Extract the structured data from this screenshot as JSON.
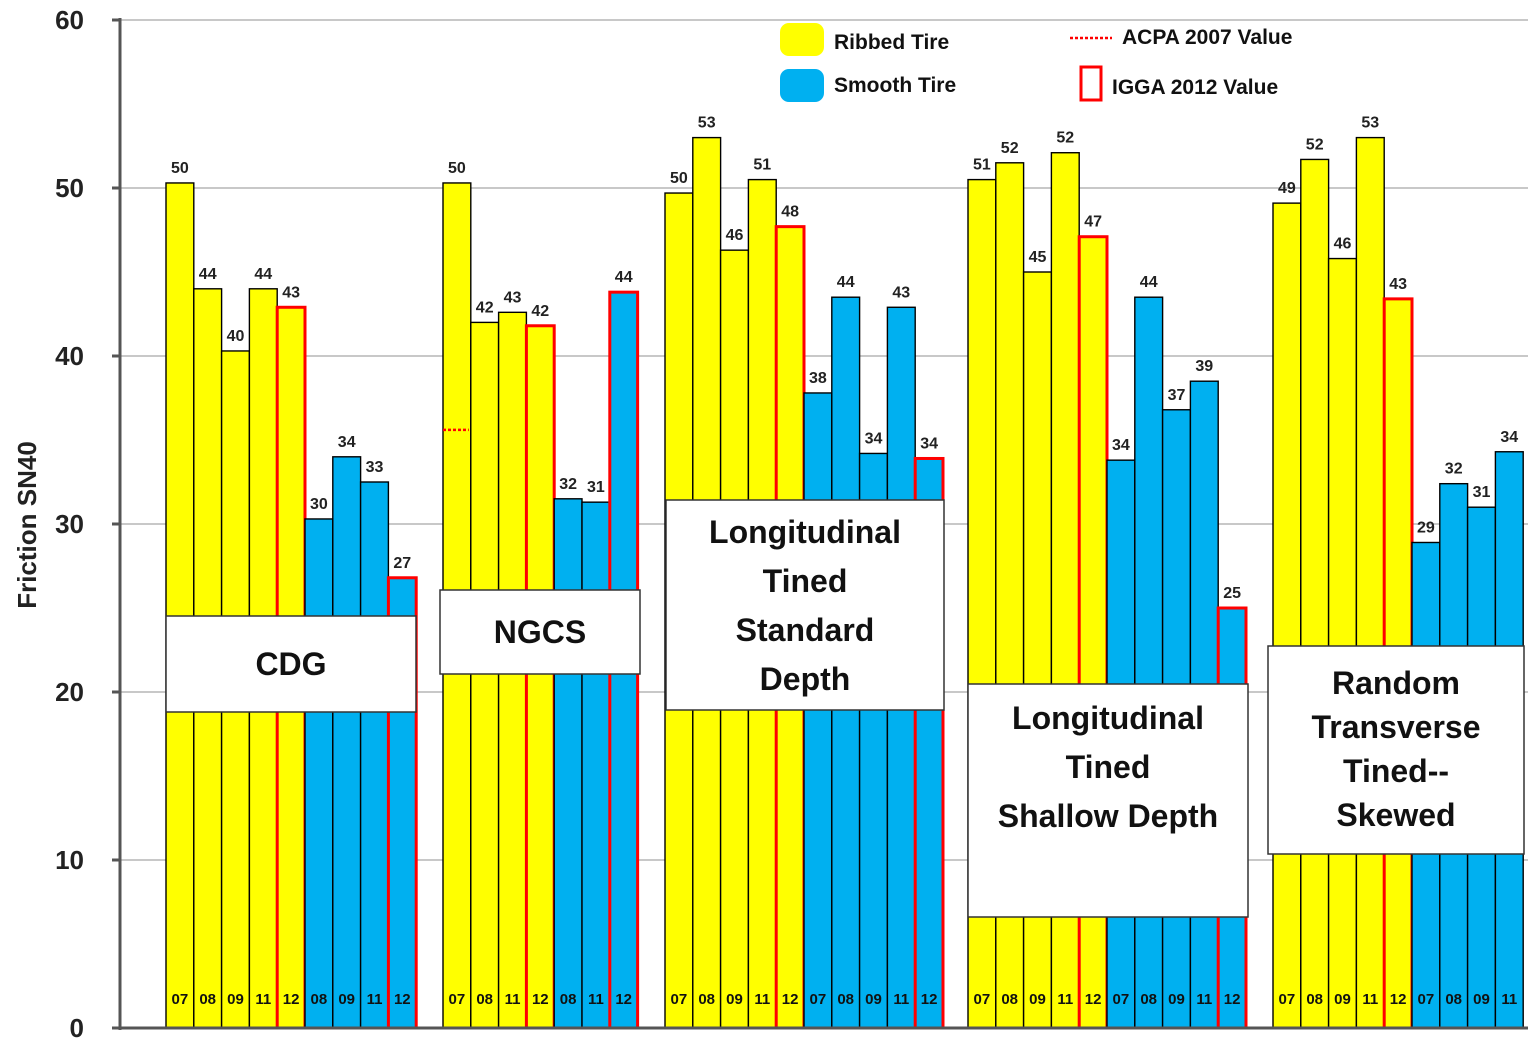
{
  "chart_data": {
    "type": "bar",
    "ylabel": "Friction SN40",
    "ylim": [
      0,
      60
    ],
    "yticks": [
      0,
      10,
      20,
      30,
      40,
      50,
      60
    ],
    "grid": true,
    "legend_position": "top",
    "legend": [
      {
        "name": "Ribbed Tire",
        "type": "swatch",
        "color": "#ffff00"
      },
      {
        "name": "Smooth Tire",
        "type": "swatch",
        "color": "#00b0f0"
      },
      {
        "name": "ACPA 2007 Value",
        "type": "dotted-line",
        "color": "#ff0000"
      },
      {
        "name": "IGGA 2012 Value",
        "type": "outline",
        "color": "#ff0000"
      }
    ],
    "colors": {
      "ribbed": "#ffff00",
      "smooth": "#00b0f0",
      "highlight": "#ff0000"
    },
    "groups": [
      {
        "label_lines": [
          "CDG"
        ],
        "bars": [
          {
            "year": "07",
            "tire": "ribbed",
            "value": 50.3,
            "label": "50"
          },
          {
            "year": "08",
            "tire": "ribbed",
            "value": 44.0,
            "label": "44"
          },
          {
            "year": "09",
            "tire": "ribbed",
            "value": 40.3,
            "label": "40"
          },
          {
            "year": "11",
            "tire": "ribbed",
            "value": 44.0,
            "label": "44"
          },
          {
            "year": "12",
            "tire": "ribbed",
            "value": 42.9,
            "label": "43",
            "igga": true
          },
          {
            "year": "08",
            "tire": "smooth",
            "value": 30.3,
            "label": "30"
          },
          {
            "year": "09",
            "tire": "smooth",
            "value": 34.0,
            "label": "34"
          },
          {
            "year": "11",
            "tire": "smooth",
            "value": 32.5,
            "label": "33"
          },
          {
            "year": "12",
            "tire": "smooth",
            "value": 26.8,
            "label": "27",
            "igga": true
          }
        ]
      },
      {
        "label_lines": [
          "NGCS"
        ],
        "acpa_value": 35.6,
        "bars": [
          {
            "year": "07",
            "tire": "ribbed",
            "value": 50.3,
            "label": "50"
          },
          {
            "year": "08",
            "tire": "ribbed",
            "value": 42.0,
            "label": "42"
          },
          {
            "year": "11",
            "tire": "ribbed",
            "value": 42.6,
            "label": "43"
          },
          {
            "year": "12",
            "tire": "ribbed",
            "value": 41.8,
            "label": "42",
            "igga": true
          },
          {
            "year": "08",
            "tire": "smooth",
            "value": 31.5,
            "label": "32"
          },
          {
            "year": "11",
            "tire": "smooth",
            "value": 31.3,
            "label": "31"
          },
          {
            "year": "12",
            "tire": "smooth",
            "value": 43.8,
            "label": "44",
            "igga": true
          }
        ]
      },
      {
        "label_lines": [
          "Longitudinal",
          "Tined",
          "Standard",
          "Depth"
        ],
        "bars": [
          {
            "year": "07",
            "tire": "ribbed",
            "value": 49.7,
            "label": "50"
          },
          {
            "year": "08",
            "tire": "ribbed",
            "value": 53.0,
            "label": "53"
          },
          {
            "year": "09",
            "tire": "ribbed",
            "value": 46.3,
            "label": "46"
          },
          {
            "year": "11",
            "tire": "ribbed",
            "value": 50.5,
            "label": "51"
          },
          {
            "year": "12",
            "tire": "ribbed",
            "value": 47.7,
            "label": "48",
            "igga": true
          },
          {
            "year": "07",
            "tire": "smooth",
            "value": 37.8,
            "label": "38"
          },
          {
            "year": "08",
            "tire": "smooth",
            "value": 43.5,
            "label": "44"
          },
          {
            "year": "09",
            "tire": "smooth",
            "value": 34.2,
            "label": "34"
          },
          {
            "year": "11",
            "tire": "smooth",
            "value": 42.9,
            "label": "43"
          },
          {
            "year": "12",
            "tire": "smooth",
            "value": 33.9,
            "label": "34",
            "igga": true
          }
        ]
      },
      {
        "label_lines": [
          "Longitudinal",
          "Tined",
          "Shallow Depth"
        ],
        "bars": [
          {
            "year": "07",
            "tire": "ribbed",
            "value": 50.5,
            "label": "51"
          },
          {
            "year": "08",
            "tire": "ribbed",
            "value": 51.5,
            "label": "52"
          },
          {
            "year": "09",
            "tire": "ribbed",
            "value": 45.0,
            "label": "45"
          },
          {
            "year": "11",
            "tire": "ribbed",
            "value": 52.1,
            "label": "52"
          },
          {
            "year": "12",
            "tire": "ribbed",
            "value": 47.1,
            "label": "47",
            "igga": true
          },
          {
            "year": "07",
            "tire": "smooth",
            "value": 33.8,
            "label": "34"
          },
          {
            "year": "08",
            "tire": "smooth",
            "value": 43.5,
            "label": "44"
          },
          {
            "year": "09",
            "tire": "smooth",
            "value": 36.8,
            "label": "37"
          },
          {
            "year": "11",
            "tire": "smooth",
            "value": 38.5,
            "label": "39"
          },
          {
            "year": "12",
            "tire": "smooth",
            "value": 25.0,
            "label": "25",
            "igga": true
          }
        ]
      },
      {
        "label_lines": [
          "Random",
          "Transverse",
          "Tined--",
          "Skewed"
        ],
        "bars": [
          {
            "year": "07",
            "tire": "ribbed",
            "value": 49.1,
            "label": "49"
          },
          {
            "year": "08",
            "tire": "ribbed",
            "value": 51.7,
            "label": "52"
          },
          {
            "year": "09",
            "tire": "ribbed",
            "value": 45.8,
            "label": "46"
          },
          {
            "year": "11",
            "tire": "ribbed",
            "value": 53.0,
            "label": "53"
          },
          {
            "year": "12",
            "tire": "ribbed",
            "value": 43.4,
            "label": "43",
            "igga": true
          },
          {
            "year": "07",
            "tire": "smooth",
            "value": 28.9,
            "label": "29"
          },
          {
            "year": "08",
            "tire": "smooth",
            "value": 32.4,
            "label": "32"
          },
          {
            "year": "09",
            "tire": "smooth",
            "value": 31.0,
            "label": "31"
          },
          {
            "year": "11",
            "tire": "smooth",
            "value": 34.3,
            "label": "34"
          }
        ]
      }
    ]
  }
}
